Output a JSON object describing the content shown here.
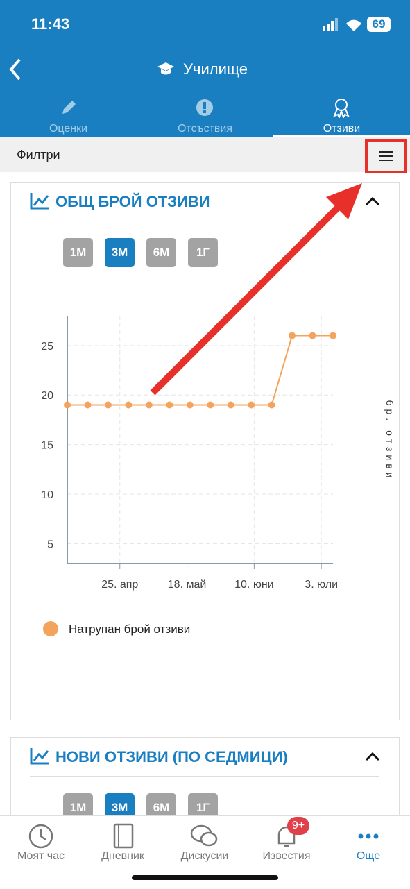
{
  "status": {
    "time": "11:43",
    "battery": "69"
  },
  "header": {
    "title": "Училище"
  },
  "tabs": [
    "Оценки",
    "Отсъствия",
    "Отзиви"
  ],
  "filters": {
    "label": "Филтри"
  },
  "cards": [
    {
      "title": "ОБЩ БРОЙ ОТЗИВИ",
      "ranges": [
        "1М",
        "3М",
        "6М",
        "1Г"
      ],
      "chart_data": {
        "type": "line",
        "y_label": "бр. отзиви",
        "x": [
          "04-07",
          "04-14",
          "04-21",
          "04-28",
          "05-05",
          "05-12",
          "05-19",
          "05-26",
          "06-02",
          "06-09",
          "06-16",
          "06-23",
          "06-30",
          "07-07"
        ],
        "series": [
          {
            "name": "Натрупан брой отзиви",
            "color": "#f4a35c",
            "values": [
              19,
              19,
              19,
              19,
              19,
              19,
              19,
              19,
              19,
              19,
              19,
              26,
              26,
              26
            ]
          }
        ],
        "xlim": [
          "04-07",
          "07-07"
        ],
        "xticks": [
          {
            "value": "04-25",
            "label": "25. апр"
          },
          {
            "value": "05-18",
            "label": "18. май"
          },
          {
            "value": "06-10",
            "label": "10. юни"
          },
          {
            "value": "07-03",
            "label": "3. юли"
          }
        ],
        "ylim": [
          3,
          28
        ],
        "yticks": [
          5,
          10,
          15,
          20,
          25
        ],
        "grid": true
      }
    },
    {
      "title": "НОВИ ОТЗИВИ (ПО СЕДМИЦИ)",
      "ranges": [
        "1М",
        "3М",
        "6М",
        "1Г"
      ]
    }
  ],
  "nav": {
    "items": [
      "Моят час",
      "Дневник",
      "Дискусии",
      "Известия",
      "Още"
    ],
    "badge": "9+"
  }
}
